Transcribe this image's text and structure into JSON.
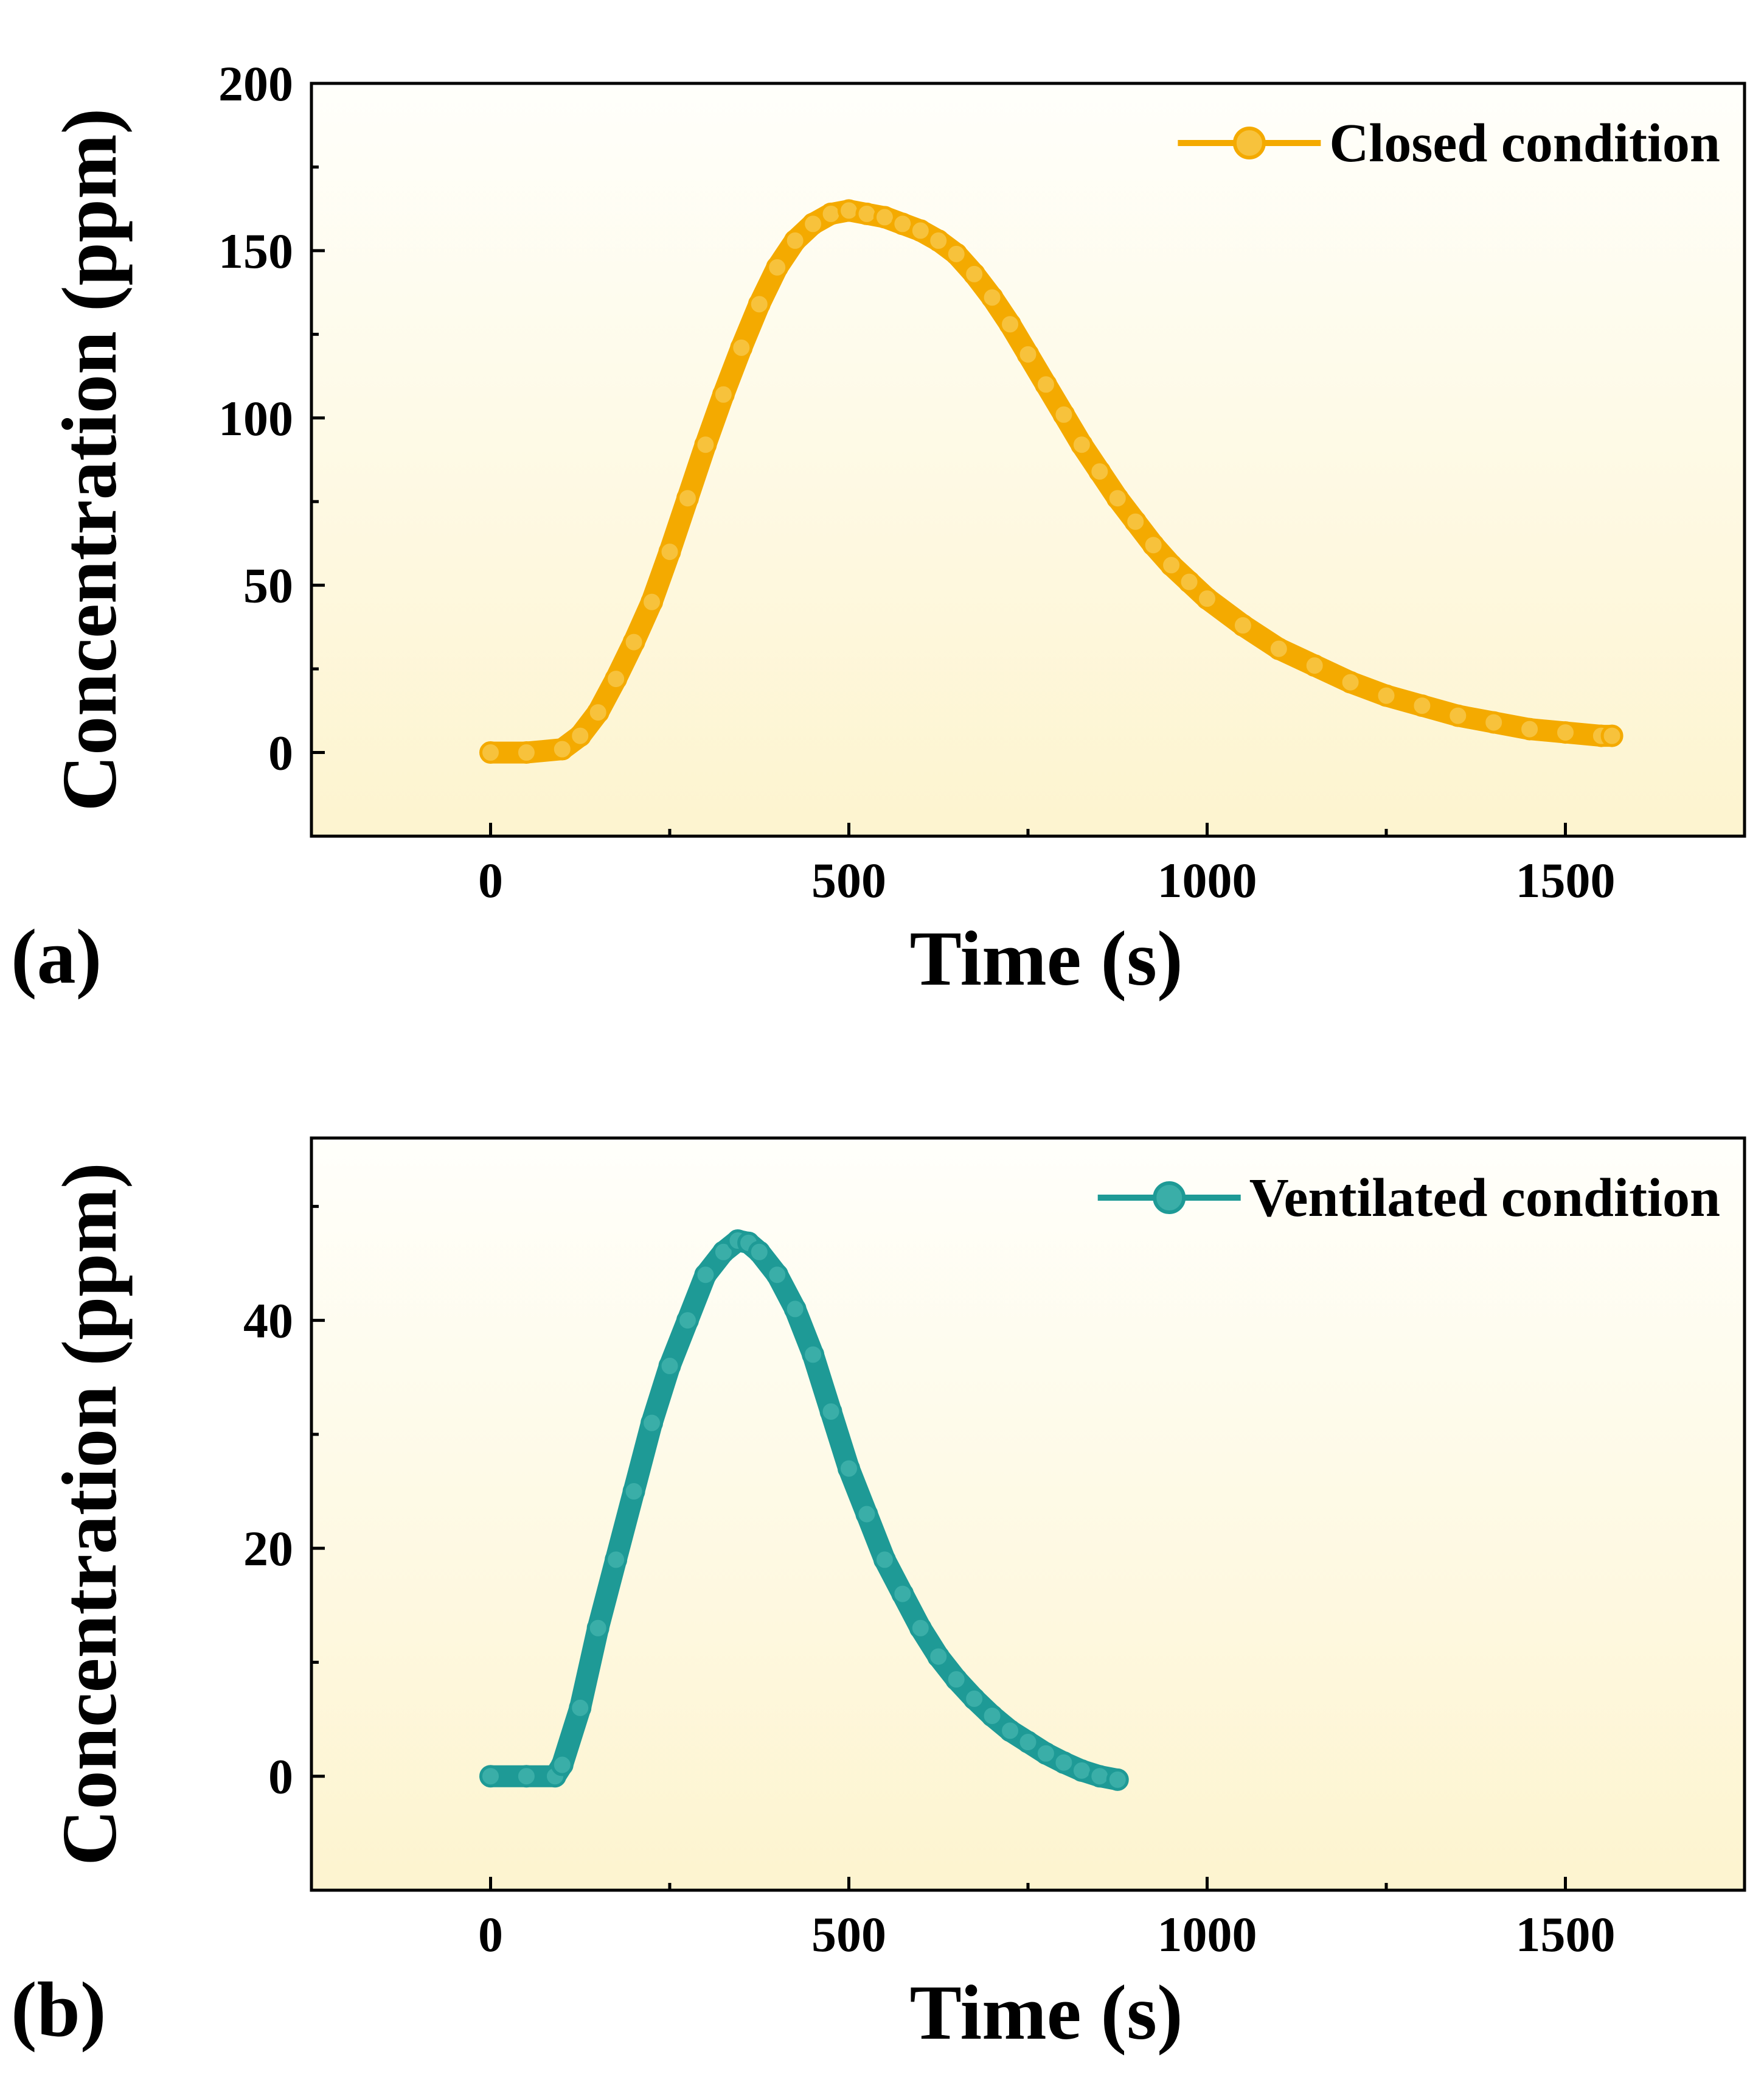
{
  "chart_data": [
    {
      "panel": "(a)",
      "type": "scatter",
      "xlabel": "Time (s)",
      "ylabel": "Concentration (ppm)",
      "xlim": [
        -250,
        1750
      ],
      "ylim": [
        -25,
        200
      ],
      "xticks": [
        0,
        500,
        1000,
        1500
      ],
      "yticks": [
        0,
        50,
        100,
        150,
        200
      ],
      "legend_position": "top-right",
      "colors": {
        "line": "#f4aa00",
        "marker": "#f7c23c",
        "bg_top": "#fffffb",
        "bg_bottom": "#fdf5d2"
      },
      "series": [
        {
          "name": "Closed condition",
          "x": [
            0,
            50,
            100,
            125,
            150,
            175,
            200,
            225,
            250,
            275,
            300,
            325,
            350,
            375,
            400,
            425,
            450,
            475,
            500,
            525,
            550,
            575,
            600,
            625,
            650,
            675,
            700,
            725,
            750,
            775,
            800,
            825,
            850,
            875,
            900,
            925,
            950,
            975,
            1000,
            1050,
            1100,
            1150,
            1200,
            1250,
            1300,
            1350,
            1400,
            1450,
            1500,
            1550,
            1565
          ],
          "y": [
            0,
            0,
            1,
            5,
            12,
            22,
            33,
            45,
            60,
            76,
            92,
            107,
            121,
            134,
            145,
            153,
            158,
            161,
            162,
            161,
            160,
            158,
            156,
            153,
            149,
            143,
            136,
            128,
            119,
            110,
            101,
            92,
            84,
            76,
            69,
            62,
            56,
            51,
            46,
            38,
            31,
            26,
            21,
            17,
            14,
            11,
            9,
            7,
            6,
            5,
            5
          ]
        }
      ]
    },
    {
      "panel": "(b)",
      "type": "scatter",
      "xlabel": "Time (s)",
      "ylabel": "Concentration (ppm)",
      "xlim": [
        -250,
        1750
      ],
      "ylim": [
        -10,
        56
      ],
      "xticks": [
        0,
        500,
        1000,
        1500
      ],
      "yticks": [
        0,
        20,
        40
      ],
      "legend_position": "top-right",
      "colors": {
        "line": "#1e9a96",
        "marker": "#3aaea8",
        "bg_top": "#fffffb",
        "bg_bottom": "#fdf5d2"
      },
      "series": [
        {
          "name": "Ventilated condition",
          "x": [
            0,
            50,
            90,
            100,
            125,
            150,
            175,
            200,
            225,
            250,
            275,
            300,
            325,
            345,
            360,
            375,
            400,
            425,
            450,
            475,
            500,
            525,
            550,
            575,
            600,
            625,
            650,
            675,
            700,
            725,
            750,
            775,
            800,
            825,
            850,
            875
          ],
          "y": [
            0,
            0,
            0,
            1,
            6,
            13,
            19,
            25,
            31,
            36,
            40,
            44,
            46,
            47,
            46.8,
            46,
            44,
            41,
            37,
            32,
            27,
            23,
            19,
            16,
            13,
            10.5,
            8.5,
            6.8,
            5.3,
            4,
            3,
            2,
            1.2,
            0.5,
            0,
            -0.3
          ]
        }
      ]
    }
  ]
}
